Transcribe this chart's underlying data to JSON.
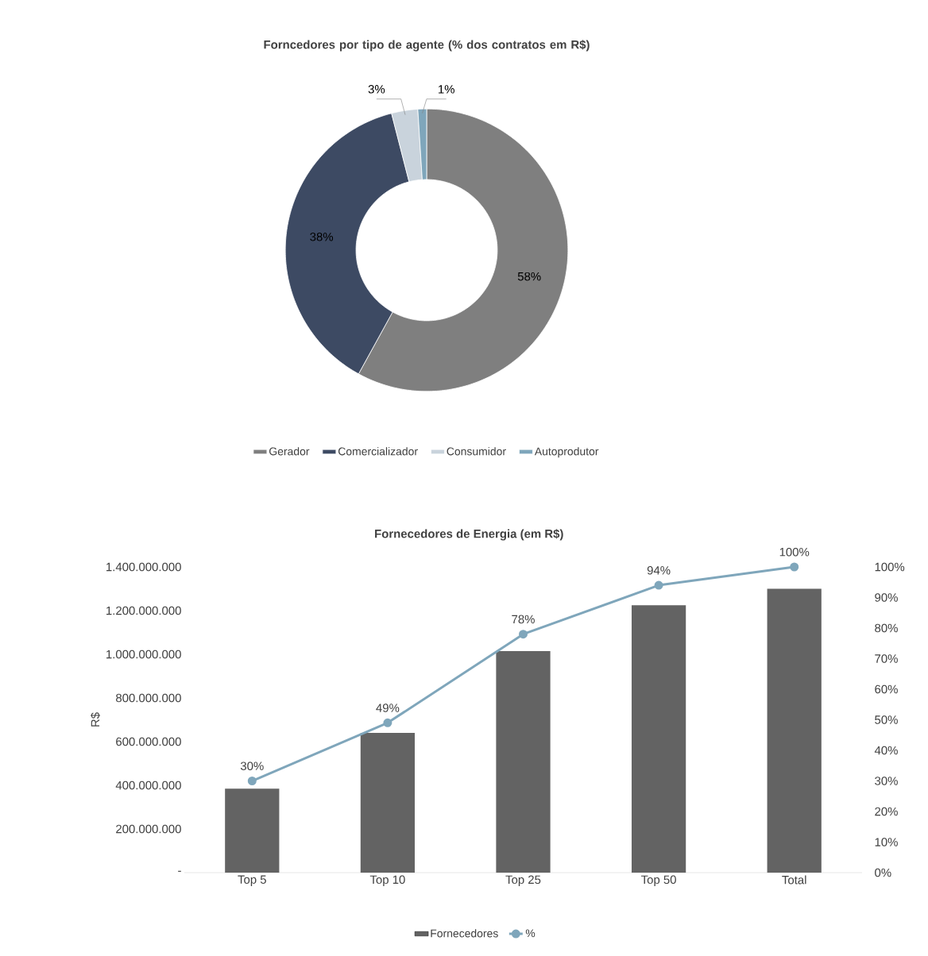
{
  "chart_data": [
    {
      "type": "donut",
      "title": "Forncedores por tipo de agente (% dos contratos em R$)",
      "categories": [
        "Gerador",
        "Comercializador",
        "Consumidor",
        "Autoprodutor"
      ],
      "values": [
        58,
        38,
        3,
        1
      ],
      "colors": [
        "#7f7f7f",
        "#3d4a63",
        "#c9d3dc",
        "#7fa6bb"
      ],
      "value_labels": [
        "58%",
        "38%",
        "3%",
        "1%"
      ],
      "legend": "bottom"
    },
    {
      "type": "bar",
      "title": "Fornecedores de Energia (em R$)",
      "ylabel": "R$",
      "categories": [
        "Top 5",
        "Top 10",
        "Top 25",
        "Top 50",
        "Total"
      ],
      "series": [
        {
          "name": "Fornecedores",
          "type": "bar",
          "color": "#636363",
          "values": [
            385000000,
            640000000,
            1015000000,
            1225000000,
            1300000000
          ]
        },
        {
          "name": "%",
          "type": "line",
          "axis": "y2",
          "color": "#7fa6bb",
          "marker": "circle",
          "values": [
            30,
            49,
            78,
            94,
            100
          ],
          "value_labels": [
            "30%",
            "49%",
            "78%",
            "94%",
            "100%"
          ]
        }
      ],
      "ylim": [
        0,
        1400000000
      ],
      "yticks": [
        {
          "value": 0,
          "label": "-"
        },
        {
          "value": 200000000,
          "label": "200.000.000"
        },
        {
          "value": 400000000,
          "label": "400.000.000"
        },
        {
          "value": 600000000,
          "label": "600.000.000"
        },
        {
          "value": 800000000,
          "label": "800.000.000"
        },
        {
          "value": 1000000000,
          "label": "1.000.000.000"
        },
        {
          "value": 1200000000,
          "label": "1.200.000.000"
        },
        {
          "value": 1400000000,
          "label": "1.400.000.000"
        }
      ],
      "y2lim": [
        0,
        100
      ],
      "y2ticks": [
        {
          "value": 0,
          "label": "0%"
        },
        {
          "value": 10,
          "label": "10%"
        },
        {
          "value": 20,
          "label": "20%"
        },
        {
          "value": 30,
          "label": "30%"
        },
        {
          "value": 40,
          "label": "40%"
        },
        {
          "value": 50,
          "label": "50%"
        },
        {
          "value": 60,
          "label": "60%"
        },
        {
          "value": 70,
          "label": "70%"
        },
        {
          "value": 80,
          "label": "80%"
        },
        {
          "value": 90,
          "label": "90%"
        },
        {
          "value": 100,
          "label": "100%"
        }
      ],
      "legend": "bottom"
    }
  ]
}
